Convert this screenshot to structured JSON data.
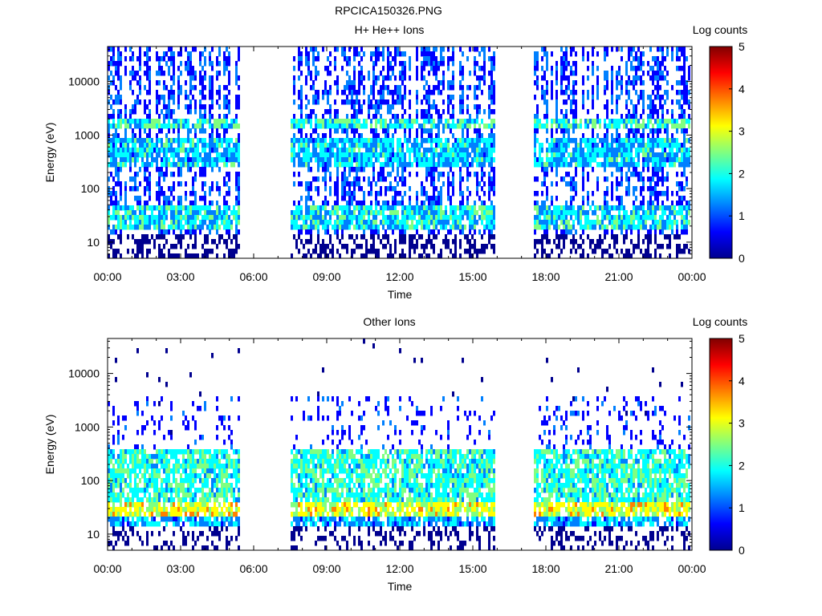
{
  "page": {
    "file_title": "RPCICA150326.PNG"
  },
  "colormap": [
    "#00008f",
    "#0000ff",
    "#0080ff",
    "#00ffff",
    "#80ff80",
    "#ffff00",
    "#ff8000",
    "#ff0000",
    "#800000"
  ],
  "chart_data": [
    {
      "type": "heatmap",
      "id": "top",
      "title": "H+ He++ Ions",
      "xlabel": "Time",
      "ylabel": "Energy (eV)",
      "xticks": [
        "00:00",
        "03:00",
        "06:00",
        "09:00",
        "12:00",
        "15:00",
        "18:00",
        "21:00",
        "00:00"
      ],
      "x_range_hours": [
        0,
        24
      ],
      "yscale": "log",
      "ylim_eV": [
        5,
        45000
      ],
      "yticks": [
        {
          "value": 10,
          "label": "10"
        },
        {
          "value": 100,
          "label": "100"
        },
        {
          "value": 1000,
          "label": "1000"
        },
        {
          "value": 10000,
          "label": "10000"
        }
      ],
      "colorbar": {
        "label": "Log counts",
        "range": [
          0,
          5
        ],
        "ticks": [
          "0",
          "1",
          "2",
          "3",
          "4",
          "5"
        ]
      },
      "data_gaps_hours": [
        [
          5.4,
          7.5
        ],
        [
          15.9,
          17.5
        ]
      ],
      "bands": [
        {
          "e_low_eV": 1400,
          "e_high_eV": 2200,
          "log_counts": 2.0
        },
        {
          "e_low_eV": 250,
          "e_high_eV": 900,
          "log_counts": 1.6
        },
        {
          "e_low_eV": 18,
          "e_high_eV": 45,
          "log_counts": 1.8
        }
      ]
    },
    {
      "type": "heatmap",
      "id": "bottom",
      "title": "Other Ions",
      "xlabel": "Time",
      "ylabel": "Energy (eV)",
      "xticks": [
        "00:00",
        "03:00",
        "06:00",
        "09:00",
        "12:00",
        "15:00",
        "18:00",
        "21:00",
        "00:00"
      ],
      "x_range_hours": [
        0,
        24
      ],
      "yscale": "log",
      "ylim_eV": [
        5,
        45000
      ],
      "yticks": [
        {
          "value": 10,
          "label": "10"
        },
        {
          "value": 100,
          "label": "100"
        },
        {
          "value": 1000,
          "label": "1000"
        },
        {
          "value": 10000,
          "label": "10000"
        }
      ],
      "colorbar": {
        "label": "Log counts",
        "range": [
          0,
          5
        ],
        "ticks": [
          "0",
          "1",
          "2",
          "3",
          "4",
          "5"
        ]
      },
      "data_gaps_hours": [
        [
          5.4,
          7.5
        ],
        [
          15.9,
          17.5
        ]
      ],
      "bands": [
        {
          "e_low_eV": 20,
          "e_high_eV": 40,
          "log_counts": 3.0
        },
        {
          "e_low_eV": 40,
          "e_high_eV": 400,
          "log_counts": 2.0
        },
        {
          "e_low_eV": 15,
          "e_high_eV": 20,
          "log_counts": 1.4
        }
      ]
    }
  ]
}
